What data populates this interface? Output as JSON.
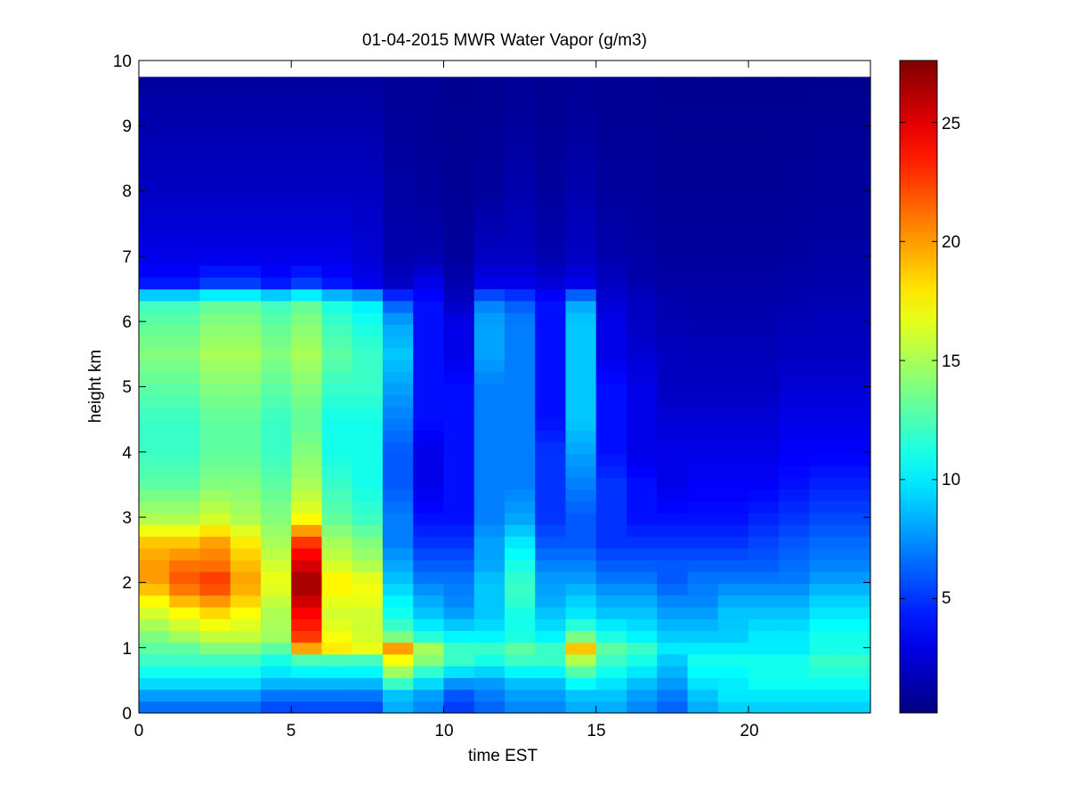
{
  "chart_data": {
    "type": "heatmap",
    "title": "01-04-2015 MWR Water Vapor (g/m3)",
    "xlabel": "time EST",
    "ylabel": "height km",
    "xlim": [
      0,
      24
    ],
    "ylim": [
      0,
      10
    ],
    "xticks": [
      "0",
      "5",
      "10",
      "15",
      "20"
    ],
    "yticks": [
      "0",
      "1",
      "2",
      "3",
      "4",
      "5",
      "6",
      "7",
      "8",
      "9",
      "10"
    ],
    "colorbar": {
      "colormap": "jet",
      "range": [
        0.2,
        27.6
      ],
      "ticks": [
        "5",
        "10",
        "15",
        "20",
        "25"
      ]
    },
    "time_columns_hours": [
      0,
      1,
      2,
      3,
      4,
      5,
      6,
      7,
      8,
      9,
      10,
      11,
      12,
      13,
      14,
      15,
      16,
      17,
      18,
      19,
      20,
      21,
      22,
      23
    ],
    "data_top_km": 9.75,
    "height_knots_km": [
      0,
      0.3,
      0.5,
      0.8,
      1.0,
      1.2,
      1.5,
      1.8,
      2.0,
      2.3,
      2.6,
      3.0,
      3.5,
      4.0,
      4.5,
      5.0,
      5.5,
      6.0,
      6.3,
      6.6,
      7.0,
      8.0,
      9.0,
      9.75
    ],
    "water_vapor_gm3": [
      [
        6,
        8,
        10,
        12,
        13,
        14,
        16,
        18,
        20,
        20,
        19,
        15,
        13,
        12,
        12,
        13,
        14,
        13,
        12,
        4,
        3,
        2,
        1.5,
        1
      ],
      [
        6,
        8,
        10,
        12,
        13,
        15,
        17,
        20,
        22,
        21,
        19,
        15,
        13,
        12,
        12,
        13,
        14,
        13,
        12,
        4,
        3,
        2,
        1.5,
        1
      ],
      [
        6,
        8,
        10,
        12,
        14,
        16,
        18,
        21,
        23,
        21,
        20,
        16,
        14,
        13,
        13,
        14,
        15,
        14,
        13,
        5,
        3,
        2,
        1.5,
        1
      ],
      [
        6,
        8,
        10,
        12,
        14,
        16,
        17,
        19,
        20,
        19,
        18,
        15,
        14,
        13,
        13,
        14,
        15,
        14,
        13,
        5,
        3,
        2,
        1.5,
        1
      ],
      [
        5,
        7,
        9,
        11,
        13,
        15,
        15,
        16,
        17,
        16,
        15,
        14,
        13,
        12,
        12,
        13,
        14,
        13,
        12,
        4,
        3,
        2,
        1.5,
        1
      ],
      [
        5,
        7,
        9,
        12,
        20,
        23,
        24,
        26,
        27,
        25,
        23,
        17,
        15,
        14,
        13,
        14,
        15,
        14,
        13,
        5,
        3,
        2,
        1.5,
        1
      ],
      [
        5,
        7,
        9,
        12,
        18,
        17,
        16,
        17,
        18,
        16,
        15,
        13,
        12,
        11,
        11,
        12,
        13,
        12,
        11,
        4,
        3,
        2,
        1.5,
        1
      ],
      [
        5,
        7,
        9,
        12,
        17,
        16,
        16,
        17,
        17,
        15,
        14,
        12,
        11,
        11,
        11,
        12,
        12,
        11,
        10,
        3,
        2.5,
        2,
        1.5,
        1
      ],
      [
        8,
        9,
        13,
        17,
        20,
        13,
        11,
        10,
        9,
        8,
        7,
        7,
        6,
        6,
        7,
        8,
        9,
        8,
        6,
        2,
        1.5,
        1.2,
        1,
        0.8
      ],
      [
        7,
        8,
        10,
        14,
        15,
        11,
        9,
        8,
        7,
        6,
        5,
        4,
        3,
        3,
        4,
        4,
        4,
        4,
        4,
        3,
        1.5,
        1,
        0.8,
        0.8
      ],
      [
        5,
        6,
        8,
        12,
        12,
        10,
        8,
        7,
        7,
        6,
        5,
        4,
        4,
        4,
        4,
        4,
        3,
        3,
        2,
        1.5,
        1,
        0.8,
        0.7,
        0.6
      ],
      [
        6,
        7,
        8,
        11,
        12,
        10,
        9,
        9,
        9,
        8,
        8,
        7,
        7,
        7,
        7,
        7,
        8,
        8,
        7,
        3,
        2,
        1,
        0.8,
        0.7
      ],
      [
        7,
        8,
        9,
        12,
        13,
        11,
        11,
        12,
        12,
        11,
        10,
        8,
        7,
        7,
        7,
        7,
        7,
        7,
        6,
        3,
        2,
        1.5,
        1,
        0.8
      ],
      [
        7,
        8,
        9,
        12,
        12,
        10,
        9,
        8,
        8,
        7,
        6,
        5,
        5,
        5,
        4,
        4,
        4,
        4,
        4,
        2.5,
        1.5,
        1,
        0.8,
        0.7
      ],
      [
        8,
        9,
        11,
        15,
        19,
        13,
        10,
        9,
        8,
        7,
        6,
        6,
        7,
        8,
        9,
        9,
        9,
        9,
        8,
        3,
        2,
        1.5,
        1,
        0.8
      ],
      [
        8,
        9,
        10,
        12,
        13,
        11,
        9,
        8,
        7,
        6,
        5,
        5,
        5,
        4,
        4,
        4,
        3,
        3,
        2.5,
        2,
        1.5,
        1,
        0.8,
        0.7
      ],
      [
        7,
        8,
        9,
        11,
        12,
        10,
        9,
        8,
        7,
        6,
        5,
        4,
        4,
        3,
        3,
        3,
        2.5,
        2,
        2,
        1.5,
        1.2,
        1,
        0.8,
        0.7
      ],
      [
        6,
        7,
        8,
        9,
        10,
        9,
        8,
        7,
        6,
        6,
        5,
        4,
        3,
        3,
        2.5,
        2,
        2,
        1.5,
        1.5,
        1.2,
        1,
        0.8,
        0.7,
        0.6
      ],
      [
        8,
        9,
        10,
        11,
        10,
        9,
        8,
        7,
        7,
        6,
        5,
        4,
        3.5,
        3,
        2.5,
        2,
        1.8,
        1.5,
        1.4,
        1.2,
        1,
        0.8,
        0.7,
        0.6
      ],
      [
        9,
        10,
        10,
        11,
        10,
        9,
        9,
        8,
        7,
        6,
        5,
        4,
        3.5,
        3,
        2.5,
        2,
        1.8,
        1.5,
        1.4,
        1.2,
        1,
        0.8,
        0.7,
        0.6
      ],
      [
        9,
        10,
        11,
        11,
        10,
        10,
        9,
        8,
        7,
        6,
        5.5,
        4.5,
        3.5,
        3,
        2.5,
        2,
        1.8,
        1.5,
        1.4,
        1.2,
        1,
        0.8,
        0.7,
        0.6
      ],
      [
        9,
        10,
        11,
        11,
        10,
        10,
        9,
        8,
        7,
        6.5,
        6,
        5,
        4,
        3.5,
        3,
        2.5,
        2,
        1.7,
        1.5,
        1.3,
        1.1,
        0.9,
        0.7,
        0.6
      ],
      [
        9,
        10,
        11,
        12,
        11,
        11,
        10,
        9,
        8,
        7,
        6.5,
        5.5,
        4.5,
        3.5,
        3,
        2.5,
        2,
        1.8,
        1.6,
        1.4,
        1.2,
        1,
        0.8,
        0.6
      ],
      [
        9,
        10,
        11,
        12,
        11,
        11,
        10,
        9,
        8,
        7,
        6.5,
        5.5,
        4.5,
        3.5,
        3,
        2.5,
        2,
        1.8,
        1.6,
        1.4,
        1.2,
        1,
        0.8,
        0.6
      ]
    ]
  }
}
